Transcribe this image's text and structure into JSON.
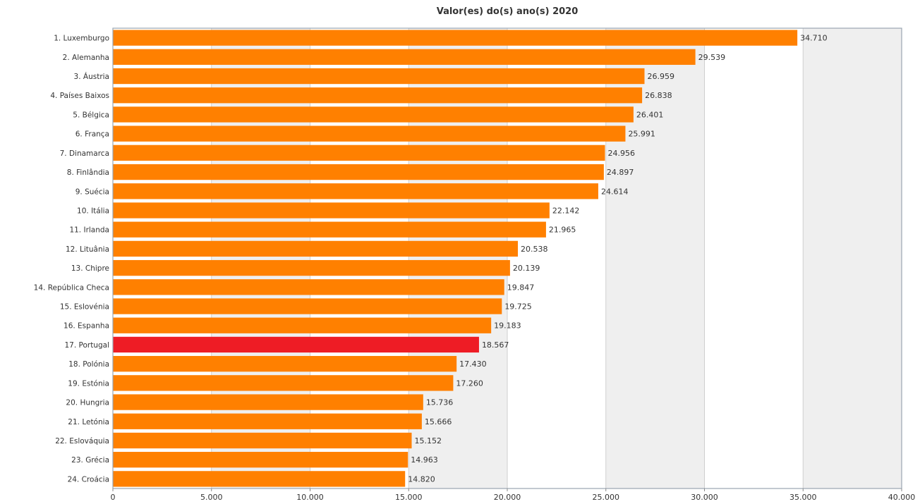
{
  "chart_data": {
    "type": "bar",
    "orientation": "horizontal",
    "title": "Valor(es) do(s) ano(s) 2020",
    "xlabel": "",
    "ylabel": "",
    "xlim": [
      0,
      40000
    ],
    "x_ticks": [
      "0",
      "5.000",
      "10.000",
      "15.000",
      "20.000",
      "25.000",
      "30.000",
      "35.000",
      "40.000"
    ],
    "x_tick_values": [
      0,
      5000,
      10000,
      15000,
      20000,
      25000,
      30000,
      35000,
      40000
    ],
    "grid": "vertical alternating bands",
    "colors": {
      "bar": "#ff8000",
      "highlight": "#ee1c25",
      "band": "#efefef",
      "grid": "#cfcfcf",
      "frame": "#9aa5b1"
    },
    "highlight_category": "17. Portugal",
    "categories": [
      "1. Luxemburgo",
      "2. Alemanha",
      "3. Áustria",
      "4. Países Baixos",
      "5. Bélgica",
      "6. França",
      "7. Dinamarca",
      "8. Finlândia",
      "9. Suécia",
      "10. Itália",
      "11. Irlanda",
      "12. Lituânia",
      "13. Chipre",
      "14. República Checa",
      "15. Eslovénia",
      "16. Espanha",
      "17. Portugal",
      "18. Polónia",
      "19. Estónia",
      "20. Hungria",
      "21. Letónia",
      "22. Eslováquia",
      "23. Grécia",
      "24. Croácia"
    ],
    "values": [
      34710,
      29539,
      26959,
      26838,
      26401,
      25991,
      24956,
      24897,
      24614,
      22142,
      21965,
      20538,
      20139,
      19847,
      19725,
      19183,
      18567,
      17430,
      17260,
      15736,
      15666,
      15152,
      14963,
      14820
    ],
    "value_labels": [
      "34.710",
      "29.539",
      "26.959",
      "26.838",
      "26.401",
      "25.991",
      "24.956",
      "24.897",
      "24.614",
      "22.142",
      "21.965",
      "20.538",
      "20.139",
      "19.847",
      "19.725",
      "19.183",
      "18.567",
      "17.430",
      "17.260",
      "15.736",
      "15.666",
      "15.152",
      "14.963",
      "14.820"
    ]
  }
}
